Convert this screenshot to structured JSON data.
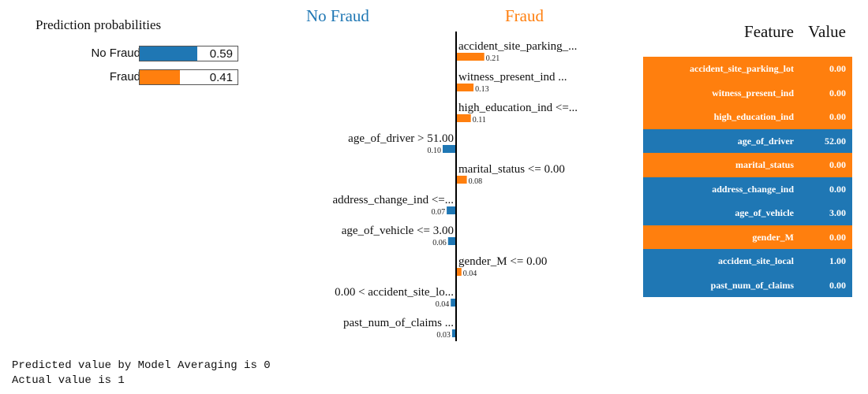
{
  "prediction_probabilities": {
    "title": "Prediction probabilities",
    "rows": [
      {
        "label": "No Fraud",
        "value": "0.59",
        "fraction": 0.59,
        "color": "#1f77b4"
      },
      {
        "label": "Fraud",
        "value": "0.41",
        "fraction": 0.41,
        "color": "#ff7f0e"
      }
    ]
  },
  "explanation": {
    "negative_class": "No Fraud",
    "positive_class": "Fraud",
    "negative_color": "#1f77b4",
    "positive_color": "#ff7f0e"
  },
  "chart_data": {
    "type": "bar",
    "orientation": "horizontal",
    "categories": [
      "accident_site_parking_...",
      "witness_present_ind ...",
      "high_education_ind <=...",
      "age_of_driver > 51.00",
      "marital_status <= 0.00",
      "address_change_ind <=...",
      "age_of_vehicle <= 3.00",
      "gender_M <= 0.00",
      "0.00 < accident_site_lo...",
      "past_num_of_claims ..."
    ],
    "values": [
      0.21,
      0.13,
      0.11,
      -0.1,
      0.08,
      -0.07,
      -0.06,
      0.04,
      -0.04,
      -0.03
    ],
    "value_labels": [
      "0.21",
      "0.13",
      "0.11",
      "0.10",
      "0.08",
      "0.07",
      "0.06",
      "0.04",
      "0.04",
      "0.03"
    ],
    "sides": [
      "Fraud",
      "Fraud",
      "Fraud",
      "No Fraud",
      "Fraud",
      "No Fraud",
      "No Fraud",
      "Fraud",
      "No Fraud",
      "No Fraud"
    ]
  },
  "feature_table": {
    "headers": [
      "Feature",
      "Value"
    ],
    "rows": [
      {
        "feature": "accident_site_parking_lot",
        "value": "0.00",
        "side": "Fraud"
      },
      {
        "feature": "witness_present_ind",
        "value": "0.00",
        "side": "Fraud"
      },
      {
        "feature": "high_education_ind",
        "value": "0.00",
        "side": "Fraud"
      },
      {
        "feature": "age_of_driver",
        "value": "52.00",
        "side": "No Fraud"
      },
      {
        "feature": "marital_status",
        "value": "0.00",
        "side": "Fraud"
      },
      {
        "feature": "address_change_ind",
        "value": "0.00",
        "side": "No Fraud"
      },
      {
        "feature": "age_of_vehicle",
        "value": "3.00",
        "side": "No Fraud"
      },
      {
        "feature": "gender_M",
        "value": "0.00",
        "side": "Fraud"
      },
      {
        "feature": "accident_site_local",
        "value": "1.00",
        "side": "No Fraud"
      },
      {
        "feature": "past_num_of_claims",
        "value": "0.00",
        "side": "No Fraud"
      }
    ]
  },
  "console_output": {
    "line1": "Predicted value by Model Averaging is 0",
    "line2": "Actual value is 1"
  }
}
